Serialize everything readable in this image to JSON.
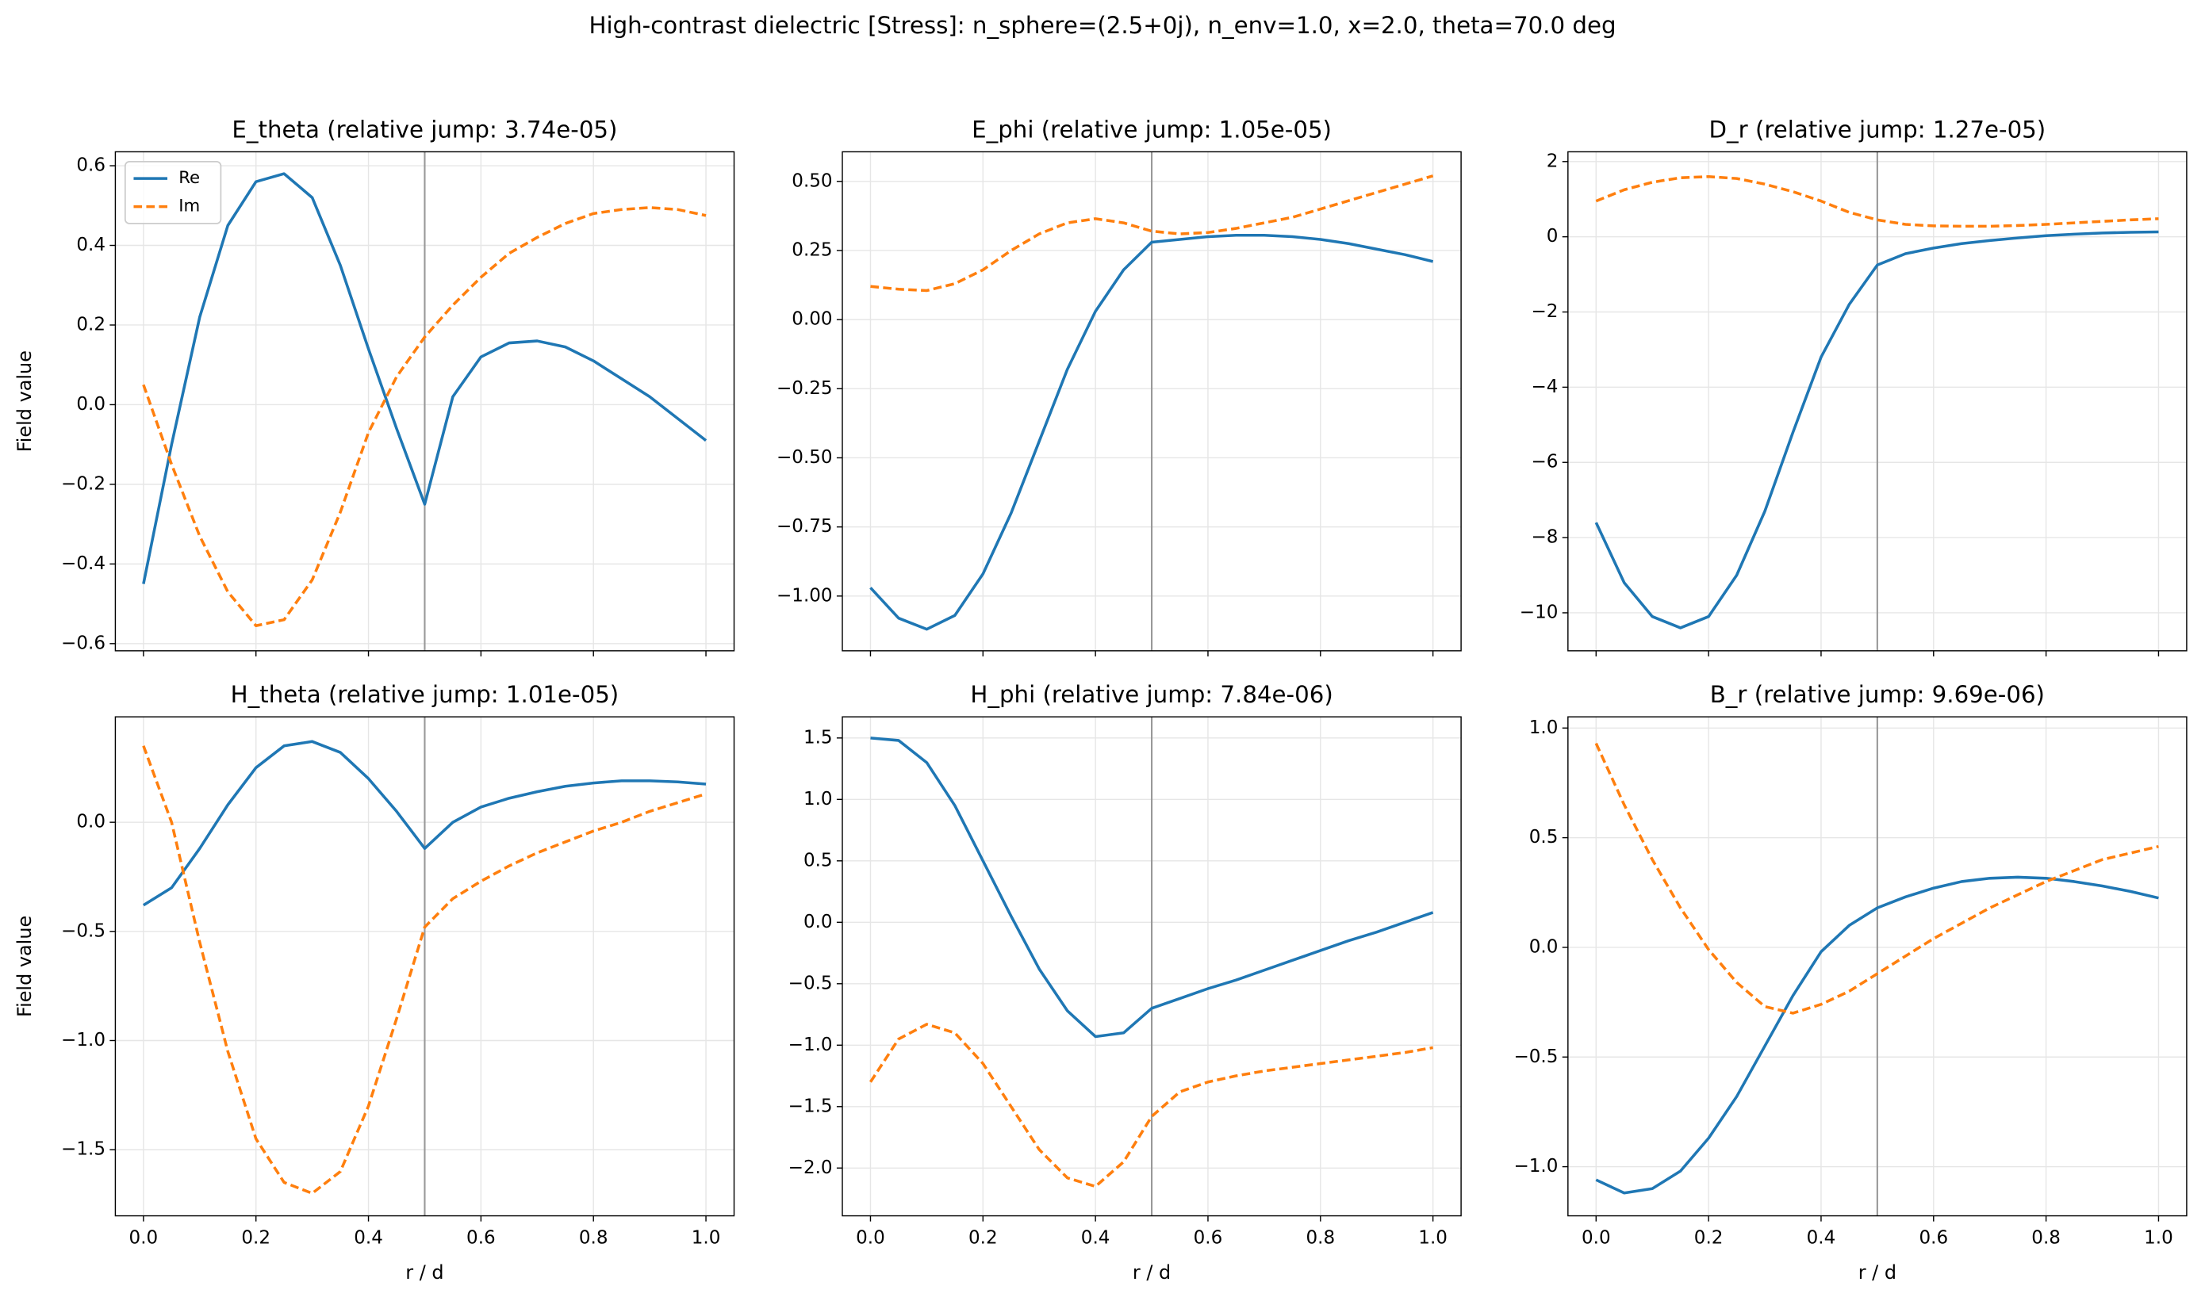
{
  "title": "High-contrast dielectric [Stress]: n_sphere=(2.5+0j), n_env=1.0, x=2.0, theta=70.0 deg",
  "chart_data": [
    {
      "type": "line",
      "title": "E_theta (relative jump: 3.74e-05)",
      "ylabel": "Field value",
      "legend": "upper left",
      "grid": true,
      "vline": 0.5,
      "x_tick_labels": false,
      "x": [
        0,
        0.05,
        0.1,
        0.15,
        0.2,
        0.25,
        0.3,
        0.35,
        0.4,
        0.45,
        0.5,
        0.55,
        0.6,
        0.65,
        0.7,
        0.75,
        0.8,
        0.85,
        0.9,
        0.95,
        1.0
      ],
      "series": [
        {
          "name": "Re",
          "color": "#1f77b4",
          "dash": false,
          "values": [
            -0.45,
            -0.1,
            0.22,
            0.45,
            0.56,
            0.58,
            0.52,
            0.35,
            0.14,
            -0.06,
            -0.25,
            0.02,
            0.12,
            0.155,
            0.16,
            0.145,
            0.11,
            0.065,
            0.02,
            -0.035,
            -0.09
          ]
        },
        {
          "name": "Im",
          "color": "#ff7f0e",
          "dash": true,
          "values": [
            0.05,
            -0.15,
            -0.33,
            -0.47,
            -0.555,
            -0.54,
            -0.44,
            -0.27,
            -0.07,
            0.07,
            0.17,
            0.25,
            0.32,
            0.38,
            0.42,
            0.455,
            0.48,
            0.49,
            0.495,
            0.49,
            0.475
          ]
        }
      ],
      "xlim": [
        -0.05,
        1.05
      ],
      "xticks": [
        {
          "value": 0,
          "label": "0.0"
        },
        0.2,
        0.4,
        0.6,
        0.8,
        {
          "value": 1,
          "label": "1.0"
        }
      ],
      "ylim": [
        -0.618,
        0.635
      ],
      "yticks": [
        -0.6,
        -0.4,
        -0.2,
        {
          "value": 0,
          "label": "0.0"
        },
        0.2,
        0.4,
        0.6
      ]
    },
    {
      "type": "line",
      "title": "E_phi (relative jump: 1.05e-05)",
      "grid": true,
      "vline": 0.5,
      "x_tick_labels": false,
      "x": [
        0,
        0.05,
        0.1,
        0.15,
        0.2,
        0.25,
        0.3,
        0.35,
        0.4,
        0.45,
        0.5,
        0.55,
        0.6,
        0.65,
        0.7,
        0.75,
        0.8,
        0.85,
        0.9,
        0.95,
        1.0
      ],
      "series": [
        {
          "color": "#1f77b4",
          "dash": false,
          "values": [
            -0.97,
            -1.08,
            -1.12,
            -1.07,
            -0.92,
            -0.7,
            -0.44,
            -0.18,
            0.03,
            0.18,
            0.28,
            0.29,
            0.3,
            0.305,
            0.305,
            0.3,
            0.29,
            0.275,
            0.255,
            0.235,
            0.21
          ]
        },
        {
          "color": "#ff7f0e",
          "dash": true,
          "values": [
            0.12,
            0.11,
            0.105,
            0.13,
            0.18,
            0.25,
            0.31,
            0.35,
            0.365,
            0.35,
            0.32,
            0.31,
            0.315,
            0.33,
            0.35,
            0.37,
            0.4,
            0.43,
            0.46,
            0.49,
            0.52
          ]
        }
      ],
      "xlim": [
        -0.05,
        1.05
      ],
      "xticks": [
        {
          "value": 0,
          "label": "0.0"
        },
        0.2,
        0.4,
        0.6,
        0.8,
        {
          "value": 1,
          "label": "1.0"
        }
      ],
      "ylim": [
        -1.198,
        0.607
      ],
      "yticks": [
        {
          "value": -1,
          "label": "−1.00"
        },
        -0.75,
        {
          "value": -0.5,
          "label": "−0.50"
        },
        -0.25,
        {
          "value": 0,
          "label": "0.00"
        },
        0.25,
        {
          "value": 0.5,
          "label": "0.50"
        }
      ]
    },
    {
      "type": "line",
      "title": "D_r (relative jump: 1.27e-05)",
      "grid": true,
      "vline": 0.5,
      "x_tick_labels": false,
      "x": [
        0,
        0.05,
        0.1,
        0.15,
        0.2,
        0.25,
        0.3,
        0.35,
        0.4,
        0.45,
        0.5,
        0.55,
        0.6,
        0.65,
        0.7,
        0.75,
        0.8,
        0.85,
        0.9,
        0.95,
        1.0
      ],
      "series": [
        {
          "color": "#1f77b4",
          "dash": false,
          "values": [
            -7.6,
            -9.2,
            -10.1,
            -10.4,
            -10.1,
            -9.0,
            -7.3,
            -5.2,
            -3.2,
            -1.8,
            -0.75,
            -0.45,
            -0.3,
            -0.18,
            -0.1,
            -0.03,
            0.03,
            0.07,
            0.1,
            0.12,
            0.13
          ]
        },
        {
          "color": "#ff7f0e",
          "dash": true,
          "values": [
            0.95,
            1.25,
            1.45,
            1.57,
            1.6,
            1.55,
            1.4,
            1.2,
            0.95,
            0.65,
            0.45,
            0.33,
            0.29,
            0.28,
            0.28,
            0.3,
            0.33,
            0.37,
            0.41,
            0.45,
            0.48
          ]
        }
      ],
      "xlim": [
        -0.05,
        1.05
      ],
      "xticks": [
        {
          "value": 0,
          "label": "0.0"
        },
        0.2,
        0.4,
        0.6,
        0.8,
        {
          "value": 1,
          "label": "1.0"
        }
      ],
      "ylim": [
        -11.01,
        2.26
      ],
      "yticks": [
        -10,
        -8,
        -6,
        -4,
        -2,
        0,
        2
      ]
    },
    {
      "type": "line",
      "title": "H_theta (relative jump: 1.01e-05)",
      "ylabel": "Field value",
      "xlabel": "r / d",
      "grid": true,
      "vline": 0.5,
      "x_tick_labels": true,
      "x": [
        0,
        0.05,
        0.1,
        0.15,
        0.2,
        0.25,
        0.3,
        0.35,
        0.4,
        0.45,
        0.5,
        0.55,
        0.6,
        0.65,
        0.7,
        0.75,
        0.8,
        0.85,
        0.9,
        0.95,
        1.0
      ],
      "series": [
        {
          "color": "#1f77b4",
          "dash": false,
          "values": [
            -0.38,
            -0.3,
            -0.12,
            0.08,
            0.25,
            0.35,
            0.37,
            0.32,
            0.2,
            0.05,
            -0.12,
            0.0,
            0.07,
            0.11,
            0.14,
            0.165,
            0.18,
            0.19,
            0.19,
            0.185,
            0.175
          ]
        },
        {
          "color": "#ff7f0e",
          "dash": true,
          "values": [
            0.35,
            0.0,
            -0.55,
            -1.05,
            -1.45,
            -1.65,
            -1.7,
            -1.6,
            -1.3,
            -0.9,
            -0.48,
            -0.35,
            -0.27,
            -0.2,
            -0.14,
            -0.09,
            -0.04,
            0.0,
            0.05,
            0.09,
            0.13
          ]
        }
      ],
      "xlim": [
        -0.05,
        1.05
      ],
      "xticks": [
        {
          "value": 0,
          "label": "0.0"
        },
        0.2,
        0.4,
        0.6,
        0.8,
        {
          "value": 1,
          "label": "1.0"
        }
      ],
      "ylim": [
        -1.803,
        0.483
      ],
      "yticks": [
        -1.5,
        {
          "value": -1,
          "label": "−1.0"
        },
        -0.5,
        {
          "value": 0,
          "label": "0.0"
        }
      ]
    },
    {
      "type": "line",
      "title": "H_phi (relative jump: 7.84e-06)",
      "xlabel": "r / d",
      "grid": true,
      "vline": 0.5,
      "x_tick_labels": true,
      "x": [
        0,
        0.05,
        0.1,
        0.15,
        0.2,
        0.25,
        0.3,
        0.35,
        0.4,
        0.45,
        0.5,
        0.55,
        0.6,
        0.65,
        0.7,
        0.75,
        0.8,
        0.85,
        0.9,
        0.95,
        1.0
      ],
      "series": [
        {
          "color": "#1f77b4",
          "dash": false,
          "values": [
            1.5,
            1.48,
            1.3,
            0.95,
            0.5,
            0.05,
            -0.38,
            -0.72,
            -0.93,
            -0.9,
            -0.7,
            -0.62,
            -0.54,
            -0.47,
            -0.39,
            -0.31,
            -0.23,
            -0.15,
            -0.08,
            0.0,
            0.08
          ]
        },
        {
          "color": "#ff7f0e",
          "dash": true,
          "values": [
            -1.3,
            -0.95,
            -0.83,
            -0.9,
            -1.15,
            -1.5,
            -1.85,
            -2.08,
            -2.15,
            -1.95,
            -1.58,
            -1.38,
            -1.3,
            -1.25,
            -1.21,
            -1.18,
            -1.15,
            -1.12,
            -1.09,
            -1.06,
            -1.02
          ]
        }
      ],
      "xlim": [
        -0.05,
        1.05
      ],
      "xticks": [
        {
          "value": 0,
          "label": "0.0"
        },
        0.2,
        0.4,
        0.6,
        0.8,
        {
          "value": 1,
          "label": "1.0"
        }
      ],
      "ylim": [
        -2.389,
        1.672
      ],
      "yticks": [
        {
          "value": -2,
          "label": "−2.0"
        },
        -1.5,
        {
          "value": -1,
          "label": "−1.0"
        },
        -0.5,
        {
          "value": 0,
          "label": "0.0"
        },
        0.5,
        {
          "value": 1,
          "label": "1.0"
        },
        1.5
      ]
    },
    {
      "type": "line",
      "title": "B_r (relative jump: 9.69e-06)",
      "xlabel": "r / d",
      "grid": true,
      "vline": 0.5,
      "x_tick_labels": true,
      "x": [
        0,
        0.05,
        0.1,
        0.15,
        0.2,
        0.25,
        0.3,
        0.35,
        0.4,
        0.45,
        0.5,
        0.55,
        0.6,
        0.65,
        0.7,
        0.75,
        0.8,
        0.85,
        0.9,
        0.95,
        1.0
      ],
      "series": [
        {
          "color": "#1f77b4",
          "dash": false,
          "values": [
            -1.06,
            -1.12,
            -1.1,
            -1.02,
            -0.87,
            -0.68,
            -0.45,
            -0.22,
            -0.02,
            0.1,
            0.18,
            0.23,
            0.27,
            0.3,
            0.315,
            0.32,
            0.315,
            0.3,
            0.28,
            0.255,
            0.225
          ]
        },
        {
          "color": "#ff7f0e",
          "dash": true,
          "values": [
            0.93,
            0.65,
            0.4,
            0.18,
            -0.01,
            -0.16,
            -0.27,
            -0.3,
            -0.26,
            -0.2,
            -0.12,
            -0.04,
            0.04,
            0.11,
            0.18,
            0.24,
            0.3,
            0.35,
            0.4,
            0.43,
            0.46
          ]
        }
      ],
      "xlim": [
        -0.05,
        1.05
      ],
      "xticks": [
        {
          "value": 0,
          "label": "0.0"
        },
        0.2,
        0.4,
        0.6,
        0.8,
        {
          "value": 1,
          "label": "1.0"
        }
      ],
      "ylim": [
        -1.224,
        1.051
      ],
      "yticks": [
        {
          "value": -1,
          "label": "−1.0"
        },
        -0.5,
        {
          "value": 0,
          "label": "0.0"
        },
        0.5,
        {
          "value": 1,
          "label": "1.0"
        }
      ]
    }
  ]
}
